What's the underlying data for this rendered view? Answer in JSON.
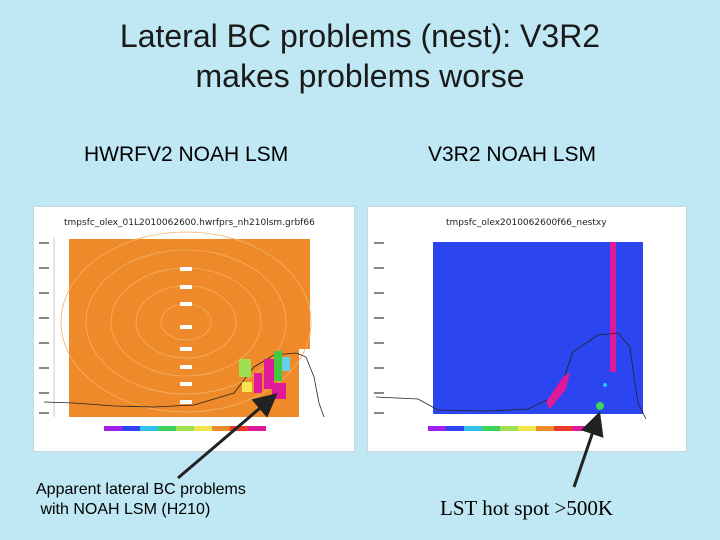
{
  "slide": {
    "title_line1": "Lateral BC problems (nest): V3R2",
    "title_line2": "makes problems worse"
  },
  "left": {
    "heading": "HWRFV2 NOAH LSM",
    "plot_title": "tmpsfc_olex_01L2010062600.hwrfprs_nh210lsm.grbf66",
    "caption_line1": "Apparent lateral BC problems",
    "caption_line2": " with NOAH LSM (H210)"
  },
  "right": {
    "heading": "V3R2 NOAH LSM",
    "plot_title": "tmpsfc_olex2010062600f66_nestxy",
    "caption": "LST hot spot >500K"
  },
  "colors": {
    "background": "#bfe8f4",
    "left_field": "#ee8a2a",
    "right_field": "#2b46f0",
    "hot_spot": "#e0199a"
  }
}
